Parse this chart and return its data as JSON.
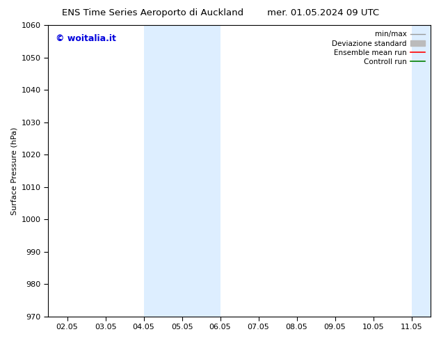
{
  "title_left": "ENS Time Series Aeroporto di Auckland",
  "title_right": "mer. 01.05.2024 09 UTC",
  "ylabel": "Surface Pressure (hPa)",
  "ylim": [
    970,
    1060
  ],
  "yticks": [
    970,
    980,
    990,
    1000,
    1010,
    1020,
    1030,
    1040,
    1050,
    1060
  ],
  "xtick_days": [
    2,
    3,
    4,
    5,
    6,
    7,
    8,
    9,
    10,
    11
  ],
  "xtick_labels": [
    "02.05",
    "03.05",
    "04.05",
    "05.05",
    "06.05",
    "07.05",
    "08.05",
    "09.05",
    "10.05",
    "11.05"
  ],
  "xlim_days": [
    1.5,
    11.5
  ],
  "watermark": "© woitalia.it",
  "watermark_color": "#0000dd",
  "shaded_bands": [
    {
      "x_start": 4.0,
      "x_end": 6.0,
      "color": "#ddeeff"
    },
    {
      "x_start": 11.0,
      "x_end": 11.5,
      "color": "#ddeeff"
    }
  ],
  "legend_entries": [
    {
      "label": "min/max",
      "color": "#999999",
      "lw": 1.0,
      "style": "minmax"
    },
    {
      "label": "Deviazione standard",
      "color": "#bbbbbb",
      "lw": 8,
      "style": "band"
    },
    {
      "label": "Ensemble mean run",
      "color": "#ff0000",
      "lw": 1.2,
      "style": "line"
    },
    {
      "label": "Controll run",
      "color": "#008000",
      "lw": 1.2,
      "style": "line"
    }
  ],
  "bg_color": "#ffffff",
  "plot_bg_color": "#ffffff",
  "spine_color": "#000000",
  "font_size": 8,
  "title_font_size": 9.5
}
